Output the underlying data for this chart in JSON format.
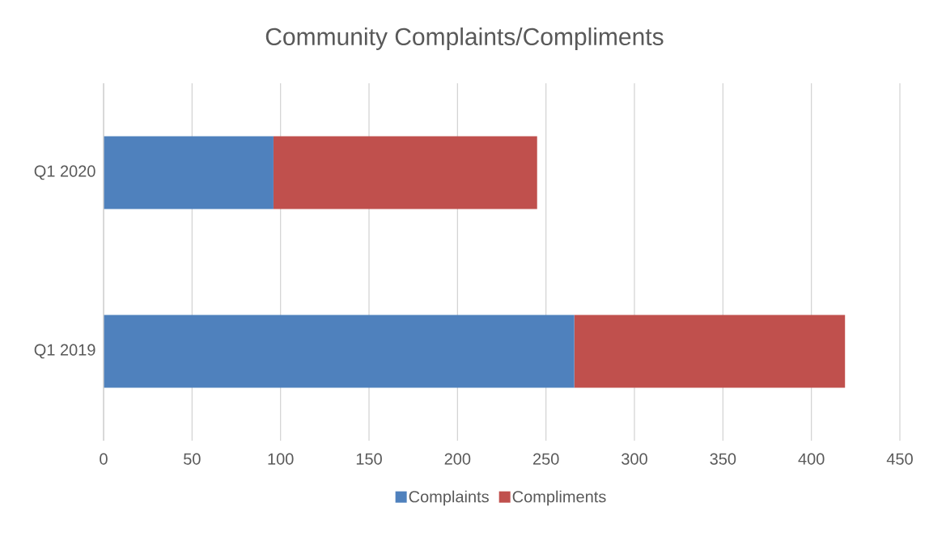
{
  "chart_data": {
    "type": "bar",
    "orientation": "horizontal",
    "stacked": true,
    "title": "Community Complaints/Compliments",
    "categories": [
      "Q1 2020",
      "Q1 2019"
    ],
    "series": [
      {
        "name": "Complaints",
        "color": "#4f81bd",
        "values": [
          96,
          266
        ]
      },
      {
        "name": "Compliments",
        "color": "#c0504d",
        "values": [
          149,
          153
        ]
      }
    ],
    "xlim": [
      0,
      450
    ],
    "xticks": [
      0,
      50,
      100,
      150,
      200,
      250,
      300,
      350,
      400,
      450
    ],
    "grid": "x",
    "legend": "bottom"
  }
}
